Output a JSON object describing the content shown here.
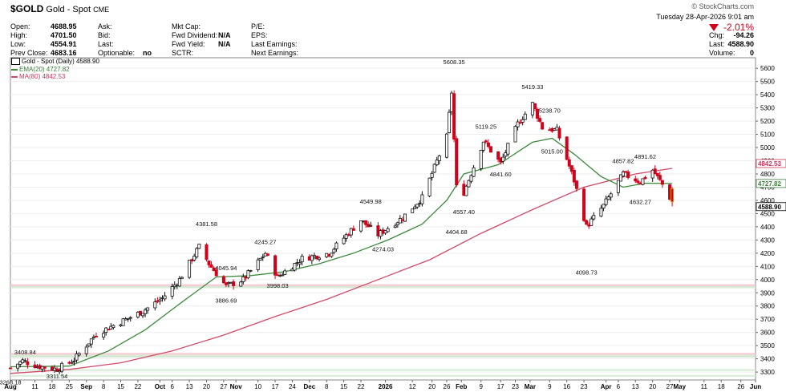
{
  "header": {
    "symbol": "$GOLD",
    "name": "Gold - Spot",
    "exchange": "CME",
    "brand": "© StockCharts.com",
    "date": "Tuesday  28-Apr-2026  9:01 am",
    "change_pct": "-2.01%",
    "up_color": "#111111",
    "down_color": "#d0021b",
    "fields_left": [
      {
        "label": "Open:",
        "value": "4688.95"
      },
      {
        "label": "High:",
        "value": "4701.50"
      },
      {
        "label": "Low:",
        "value": "4554.91"
      },
      {
        "label": "Prev Close:",
        "value": "4683.16"
      }
    ],
    "fields_mid1": [
      {
        "label": "Ask:",
        "value": ""
      },
      {
        "label": "Bid:",
        "value": ""
      },
      {
        "label": "Last:",
        "value": ""
      },
      {
        "label": "Optionable:",
        "value": "no"
      }
    ],
    "fields_mid2": [
      {
        "label": "Mkt Cap:",
        "value": ""
      },
      {
        "label": "Fwd Dividend:",
        "value": "N/A"
      },
      {
        "label": "Fwd Yield:",
        "value": "N/A"
      },
      {
        "label": "SCTR:",
        "value": ""
      }
    ],
    "fields_mid3": [
      {
        "label": "P/E:",
        "value": ""
      },
      {
        "label": "EPS:",
        "value": ""
      },
      {
        "label": "Last Earnings:",
        "value": ""
      },
      {
        "label": "Next Earnings:",
        "value": ""
      }
    ],
    "fields_right": [
      {
        "label": "Chg:",
        "value": "-94.26"
      },
      {
        "label": "Last:",
        "value": "4588.90"
      },
      {
        "label": "Volume:",
        "value": "0"
      }
    ]
  },
  "legend": {
    "price": "Gold - Spot (Daily) 4588.90",
    "ema": "EMA(20) 4727.82",
    "ma": "MA(80) 4842.53"
  },
  "chart_data": {
    "type": "candlestick",
    "y_range": [
      3240,
      5680
    ],
    "y_ticks": [
      3300,
      3400,
      3500,
      3600,
      3700,
      3800,
      3900,
      4000,
      4100,
      4200,
      4300,
      4400,
      4500,
      4600,
      4700,
      4800,
      4900,
      5000,
      5100,
      5200,
      5300,
      5400,
      5500,
      5600
    ],
    "x_axis": {
      "start": "2025-08-01",
      "end": "2026-06-01",
      "labels": [
        {
          "date": "2025-08-01",
          "text": "Aug",
          "bold": true
        },
        {
          "date": "2025-08-11",
          "text": "11"
        },
        {
          "date": "2025-08-18",
          "text": "18"
        },
        {
          "date": "2025-08-25",
          "text": "25"
        },
        {
          "date": "2025-09-01",
          "text": "Sep",
          "bold": true
        },
        {
          "date": "2025-09-08",
          "text": "8"
        },
        {
          "date": "2025-09-15",
          "text": "15"
        },
        {
          "date": "2025-09-22",
          "text": "22"
        },
        {
          "date": "2025-10-01",
          "text": "Oct",
          "bold": true
        },
        {
          "date": "2025-10-06",
          "text": "6"
        },
        {
          "date": "2025-10-13",
          "text": "13"
        },
        {
          "date": "2025-10-20",
          "text": "20"
        },
        {
          "date": "2025-10-27",
          "text": "27"
        },
        {
          "date": "2025-11-01",
          "text": "Nov",
          "bold": true
        },
        {
          "date": "2025-11-10",
          "text": "10"
        },
        {
          "date": "2025-11-17",
          "text": "17"
        },
        {
          "date": "2025-11-24",
          "text": "24"
        },
        {
          "date": "2025-12-01",
          "text": "Dec",
          "bold": true
        },
        {
          "date": "2025-12-08",
          "text": "8"
        },
        {
          "date": "2025-12-15",
          "text": "15"
        },
        {
          "date": "2025-12-22",
          "text": "22"
        },
        {
          "date": "2026-01-01",
          "text": "2026",
          "bold": true
        },
        {
          "date": "2026-01-12",
          "text": "12"
        },
        {
          "date": "2026-01-20",
          "text": "20"
        },
        {
          "date": "2026-01-26",
          "text": "26"
        },
        {
          "date": "2026-02-01",
          "text": "Feb",
          "bold": true
        },
        {
          "date": "2026-02-09",
          "text": "9"
        },
        {
          "date": "2026-02-17",
          "text": "17"
        },
        {
          "date": "2026-02-23",
          "text": "23"
        },
        {
          "date": "2026-03-01",
          "text": "Mar",
          "bold": true
        },
        {
          "date": "2026-03-09",
          "text": "9"
        },
        {
          "date": "2026-03-16",
          "text": "16"
        },
        {
          "date": "2026-03-23",
          "text": "23"
        },
        {
          "date": "2026-04-01",
          "text": "Apr",
          "bold": true
        },
        {
          "date": "2026-04-06",
          "text": "6"
        },
        {
          "date": "2026-04-13",
          "text": "13"
        },
        {
          "date": "2026-04-20",
          "text": "20"
        },
        {
          "date": "2026-04-27",
          "text": "27"
        },
        {
          "date": "2026-05-01",
          "text": "May",
          "bold": true
        },
        {
          "date": "2026-05-11",
          "text": "11"
        },
        {
          "date": "2026-05-18",
          "text": "18"
        },
        {
          "date": "2026-05-26",
          "text": "26"
        },
        {
          "date": "2026-06-01",
          "text": "Jun",
          "bold": true
        }
      ]
    },
    "bands": [
      {
        "from": 3950,
        "to": 3965,
        "color": "#f6c9d0"
      },
      {
        "from": 3935,
        "to": 3950,
        "color": "#cfe8cf"
      },
      {
        "from": 3430,
        "to": 3445,
        "color": "#f6c9d0"
      },
      {
        "from": 3410,
        "to": 3430,
        "color": "#cfe8cf"
      },
      {
        "from": 3308,
        "to": 3322,
        "color": "#d6ebd6"
      },
      {
        "from": 3265,
        "to": 3278,
        "color": "#d6ebd6"
      }
    ],
    "right_labels": [
      {
        "value": 4842.53,
        "text": "4842.53",
        "color": "#c8375a",
        "fill": "#ffffff"
      },
      {
        "value": 4727.82,
        "text": "4727.82",
        "color": "#3d7d3d",
        "fill": "#ffffff"
      },
      {
        "value": 4588.9,
        "text": "4588.90",
        "color": "#000000",
        "fill": "#ffffff"
      }
    ],
    "annotations": [
      {
        "date": "2025-08-01",
        "value": 3268.18,
        "text": "3268.18",
        "pos": "below"
      },
      {
        "date": "2025-08-07",
        "value": 3408.84,
        "text": "3408.84",
        "pos": "above"
      },
      {
        "date": "2025-08-20",
        "value": 3311.54,
        "text": "3311.54",
        "pos": "below"
      },
      {
        "date": "2025-10-20",
        "value": 4381.58,
        "text": "4381.58",
        "pos": "above"
      },
      {
        "date": "2025-10-28",
        "value": 4045.94,
        "text": "4045.94",
        "pos": "above"
      },
      {
        "date": "2025-10-28",
        "value": 3886.69,
        "text": "3886.69",
        "pos": "below"
      },
      {
        "date": "2025-11-13",
        "value": 4245.27,
        "text": "4245.27",
        "pos": "above"
      },
      {
        "date": "2025-11-18",
        "value": 3998.03,
        "text": "3998.03",
        "pos": "below"
      },
      {
        "date": "2025-12-26",
        "value": 4549.98,
        "text": "4549.98",
        "pos": "above"
      },
      {
        "date": "2025-12-31",
        "value": 4274.03,
        "text": "4274.03",
        "pos": "below"
      },
      {
        "date": "2026-01-29",
        "value": 5608.35,
        "text": "5608.35",
        "pos": "above"
      },
      {
        "date": "2026-01-30",
        "value": 4404.68,
        "text": "4404.68",
        "pos": "below"
      },
      {
        "date": "2026-02-02",
        "value": 4557.4,
        "text": "4557.40",
        "pos": "below"
      },
      {
        "date": "2026-02-11",
        "value": 5119.25,
        "text": "5119.25",
        "pos": "above"
      },
      {
        "date": "2026-02-17",
        "value": 4841.6,
        "text": "4841.60",
        "pos": "below"
      },
      {
        "date": "2026-03-02",
        "value": 5419.33,
        "text": "5419.33",
        "pos": "above"
      },
      {
        "date": "2026-03-09",
        "value": 5238.7,
        "text": "5238.70",
        "pos": "above"
      },
      {
        "date": "2026-03-10",
        "value": 5015.0,
        "text": "5015.00",
        "pos": "below"
      },
      {
        "date": "2026-03-24",
        "value": 4098.73,
        "text": "4098.73",
        "pos": "below"
      },
      {
        "date": "2026-04-08",
        "value": 4857.82,
        "text": "4857.82",
        "pos": "above"
      },
      {
        "date": "2026-04-15",
        "value": 4632.27,
        "text": "4632.27",
        "pos": "below"
      },
      {
        "date": "2026-04-17",
        "value": 4891.62,
        "text": "4891.62",
        "pos": "above"
      }
    ],
    "series_price": {
      "name": "Gold - Spot (Daily)",
      "anchors_close": [
        [
          "2025-08-01",
          3330
        ],
        [
          "2025-08-06",
          3385
        ],
        [
          "2025-08-12",
          3345
        ],
        [
          "2025-08-20",
          3322
        ],
        [
          "2025-08-27",
          3395
        ],
        [
          "2025-09-05",
          3590
        ],
        [
          "2025-09-15",
          3680
        ],
        [
          "2025-09-24",
          3760
        ],
        [
          "2025-10-02",
          3860
        ],
        [
          "2025-10-09",
          4000
        ],
        [
          "2025-10-17",
          4250
        ],
        [
          "2025-10-21",
          4120
        ],
        [
          "2025-10-28",
          3950
        ],
        [
          "2025-11-04",
          4000
        ],
        [
          "2025-11-13",
          4200
        ],
        [
          "2025-11-18",
          4020
        ],
        [
          "2025-11-28",
          4160
        ],
        [
          "2025-12-09",
          4200
        ],
        [
          "2025-12-22",
          4450
        ],
        [
          "2025-12-29",
          4340
        ],
        [
          "2026-01-08",
          4470
        ],
        [
          "2026-01-16",
          4620
        ],
        [
          "2026-01-26",
          5080
        ],
        [
          "2026-01-28",
          5420
        ],
        [
          "2026-01-30",
          4700
        ],
        [
          "2026-02-02",
          4660
        ],
        [
          "2026-02-10",
          5050
        ],
        [
          "2026-02-17",
          4880
        ],
        [
          "2026-02-24",
          5180
        ],
        [
          "2026-03-02",
          5330
        ],
        [
          "2026-03-06",
          5150
        ],
        [
          "2026-03-12",
          5130
        ],
        [
          "2026-03-19",
          4750
        ],
        [
          "2026-03-24",
          4400
        ],
        [
          "2026-03-31",
          4560
        ],
        [
          "2026-04-08",
          4800
        ],
        [
          "2026-04-15",
          4740
        ],
        [
          "2026-04-20",
          4830
        ],
        [
          "2026-04-24",
          4720
        ],
        [
          "2026-04-28",
          4588.9
        ]
      ],
      "last_open": 4688.95,
      "last_high": 4701.5,
      "last_low": 4554.91,
      "up_color": "#111111",
      "down_color": "#d0021b"
    },
    "series_ema": {
      "name": "EMA(20)",
      "color": "#3d8a3d",
      "points": [
        [
          "2025-08-01",
          3340
        ],
        [
          "2025-08-25",
          3345
        ],
        [
          "2025-09-10",
          3460
        ],
        [
          "2025-09-25",
          3620
        ],
        [
          "2025-10-10",
          3830
        ],
        [
          "2025-10-24",
          4020
        ],
        [
          "2025-11-07",
          4030
        ],
        [
          "2025-11-21",
          4060
        ],
        [
          "2025-12-05",
          4120
        ],
        [
          "2025-12-19",
          4200
        ],
        [
          "2026-01-02",
          4300
        ],
        [
          "2026-01-16",
          4420
        ],
        [
          "2026-01-26",
          4600
        ],
        [
          "2026-02-02",
          4800
        ],
        [
          "2026-02-16",
          4870
        ],
        [
          "2026-03-02",
          5040
        ],
        [
          "2026-03-10",
          5070
        ],
        [
          "2026-03-19",
          4950
        ],
        [
          "2026-03-30",
          4780
        ],
        [
          "2026-04-08",
          4700
        ],
        [
          "2026-04-17",
          4730
        ],
        [
          "2026-04-28",
          4727.82
        ]
      ]
    },
    "series_ma": {
      "name": "MA(80)",
      "color": "#d04a6a",
      "points": [
        [
          "2025-08-01",
          3290
        ],
        [
          "2025-08-25",
          3320
        ],
        [
          "2025-09-15",
          3370
        ],
        [
          "2025-10-06",
          3460
        ],
        [
          "2025-10-27",
          3580
        ],
        [
          "2025-11-17",
          3720
        ],
        [
          "2025-12-08",
          3850
        ],
        [
          "2025-12-29",
          4000
        ],
        [
          "2026-01-19",
          4150
        ],
        [
          "2026-02-09",
          4350
        ],
        [
          "2026-03-02",
          4530
        ],
        [
          "2026-03-23",
          4700
        ],
        [
          "2026-04-13",
          4800
        ],
        [
          "2026-04-28",
          4842.53
        ]
      ]
    }
  }
}
